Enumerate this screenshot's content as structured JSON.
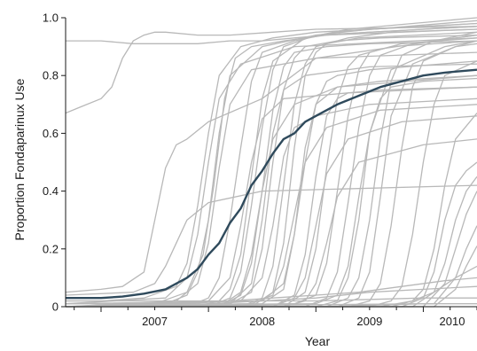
{
  "chart_data": {
    "type": "line",
    "title": "",
    "xlabel": "Year",
    "ylabel": "Proportion Fondaparinux Use",
    "xlim": [
      2006.67,
      2010.5
    ],
    "ylim": [
      0,
      1.0
    ],
    "x_ticks": [
      2007,
      2008,
      2009,
      2010
    ],
    "x_tick_labels": [
      "2007",
      "2008",
      "2009",
      "2010"
    ],
    "y_ticks": [
      0,
      0.2,
      0.4,
      0.6,
      0.8,
      1.0
    ],
    "y_tick_labels": [
      "0",
      "0.2",
      "0.4",
      "0.6",
      "0.8",
      "1.0"
    ],
    "grid": false,
    "colors": {
      "summary": "#2f4a5c",
      "hospitals": "#b8b8b8",
      "axis": "#1a1a1a"
    },
    "series": [
      {
        "role": "summary",
        "x": [
          2006.67,
          2007.0,
          2007.2,
          2007.4,
          2007.6,
          2007.8,
          2007.9,
          2008.0,
          2008.1,
          2008.2,
          2008.3,
          2008.4,
          2008.5,
          2008.6,
          2008.7,
          2008.8,
          2008.9,
          2009.0,
          2009.2,
          2009.4,
          2009.6,
          2009.8,
          2010.0,
          2010.2,
          2010.5
        ],
        "values": [
          0.03,
          0.03,
          0.035,
          0.045,
          0.06,
          0.1,
          0.13,
          0.18,
          0.22,
          0.29,
          0.34,
          0.42,
          0.47,
          0.53,
          0.58,
          0.6,
          0.64,
          0.66,
          0.7,
          0.73,
          0.76,
          0.78,
          0.8,
          0.81,
          0.82
        ]
      }
    ],
    "background_series": [
      {
        "x": [
          2006.67,
          2007.0,
          2007.3,
          2007.6,
          2007.9,
          2008.2,
          2008.5,
          2008.8,
          2009.1,
          2009.5,
          2010.0,
          2010.5
        ],
        "values": [
          0.92,
          0.92,
          0.91,
          0.91,
          0.91,
          0.92,
          0.92,
          0.93,
          0.94,
          0.95,
          0.96,
          0.97
        ]
      },
      {
        "x": [
          2006.67,
          2006.8,
          2007.0,
          2007.1,
          2007.2,
          2007.3,
          2007.4,
          2007.5,
          2007.6,
          2007.9,
          2008.2,
          2008.6,
          2009.0,
          2010.5
        ],
        "values": [
          0.67,
          0.69,
          0.72,
          0.76,
          0.86,
          0.92,
          0.94,
          0.95,
          0.95,
          0.94,
          0.94,
          0.95,
          0.96,
          0.97
        ]
      },
      {
        "x": [
          2006.67,
          2007.0,
          2007.2,
          2007.4,
          2007.5,
          2007.6,
          2007.7,
          2007.8,
          2008.0,
          2008.5,
          2009.0,
          2010.5
        ],
        "values": [
          0.05,
          0.06,
          0.07,
          0.12,
          0.3,
          0.48,
          0.56,
          0.58,
          0.64,
          0.72,
          0.86,
          0.94
        ]
      },
      {
        "x": [
          2006.67,
          2007.0,
          2007.4,
          2007.7,
          2007.8,
          2007.9,
          2008.0,
          2008.1,
          2008.3,
          2008.6,
          2009.0,
          2010.5
        ],
        "values": [
          0.02,
          0.02,
          0.03,
          0.07,
          0.15,
          0.35,
          0.6,
          0.8,
          0.9,
          0.93,
          0.95,
          0.98
        ]
      },
      {
        "x": [
          2006.67,
          2007.5,
          2007.8,
          2007.95,
          2008.05,
          2008.15,
          2008.25,
          2008.4,
          2008.7,
          2009.1,
          2010.5
        ],
        "values": [
          0.0,
          0.01,
          0.05,
          0.18,
          0.42,
          0.72,
          0.86,
          0.9,
          0.92,
          0.94,
          0.96
        ]
      },
      {
        "x": [
          2006.67,
          2007.8,
          2008.0,
          2008.1,
          2008.2,
          2008.3,
          2008.4,
          2008.5,
          2008.8,
          2009.2,
          2010.5
        ],
        "values": [
          0.0,
          0.0,
          0.03,
          0.1,
          0.3,
          0.55,
          0.78,
          0.88,
          0.92,
          0.95,
          0.99
        ]
      },
      {
        "x": [
          2006.67,
          2007.9,
          2008.1,
          2008.2,
          2008.3,
          2008.4,
          2008.5,
          2008.6,
          2008.9,
          2009.3,
          2010.5
        ],
        "values": [
          0.0,
          0.0,
          0.02,
          0.06,
          0.18,
          0.45,
          0.72,
          0.85,
          0.93,
          0.96,
          1.0
        ]
      },
      {
        "x": [
          2006.67,
          2008.0,
          2008.2,
          2008.3,
          2008.4,
          2008.5,
          2008.6,
          2008.7,
          2009.0,
          2009.5,
          2010.5
        ],
        "values": [
          0.0,
          0.0,
          0.03,
          0.12,
          0.35,
          0.62,
          0.82,
          0.9,
          0.94,
          0.96,
          0.98
        ]
      },
      {
        "x": [
          2006.67,
          2008.1,
          2008.3,
          2008.4,
          2008.5,
          2008.6,
          2008.7,
          2008.8,
          2009.1,
          2009.5,
          2010.5
        ],
        "values": [
          0.0,
          0.0,
          0.04,
          0.15,
          0.4,
          0.68,
          0.83,
          0.88,
          0.9,
          0.91,
          0.92
        ]
      },
      {
        "x": [
          2006.67,
          2008.2,
          2008.4,
          2008.5,
          2008.6,
          2008.7,
          2008.8,
          2008.9,
          2009.2,
          2009.6,
          2010.5
        ],
        "values": [
          0.0,
          0.01,
          0.05,
          0.2,
          0.5,
          0.75,
          0.86,
          0.9,
          0.92,
          0.93,
          0.94
        ]
      },
      {
        "x": [
          2006.67,
          2008.3,
          2008.5,
          2008.6,
          2008.7,
          2008.8,
          2008.9,
          2009.0,
          2009.3,
          2009.7,
          2010.5
        ],
        "values": [
          0.0,
          0.0,
          0.03,
          0.14,
          0.42,
          0.7,
          0.84,
          0.9,
          0.93,
          0.95,
          0.96
        ]
      },
      {
        "x": [
          2006.67,
          2008.4,
          2008.6,
          2008.7,
          2008.8,
          2008.9,
          2009.0,
          2009.1,
          2009.4,
          2010.5
        ],
        "values": [
          0.0,
          0.0,
          0.05,
          0.22,
          0.55,
          0.8,
          0.88,
          0.91,
          0.93,
          0.95
        ]
      },
      {
        "x": [
          2006.67,
          2008.5,
          2008.7,
          2008.8,
          2008.9,
          2009.0,
          2009.1,
          2009.2,
          2009.5,
          2010.5
        ],
        "values": [
          0.0,
          0.01,
          0.06,
          0.25,
          0.5,
          0.7,
          0.78,
          0.8,
          0.82,
          0.85
        ]
      },
      {
        "x": [
          2006.67,
          2008.6,
          2008.8,
          2008.9,
          2009.0,
          2009.1,
          2009.2,
          2009.3,
          2009.6,
          2010.5
        ],
        "values": [
          0.0,
          0.0,
          0.04,
          0.18,
          0.45,
          0.66,
          0.72,
          0.74,
          0.75,
          0.76
        ]
      },
      {
        "x": [
          2006.67,
          2008.7,
          2008.9,
          2009.0,
          2009.1,
          2009.2,
          2009.3,
          2009.4,
          2009.7,
          2010.5
        ],
        "values": [
          0.0,
          0.0,
          0.05,
          0.2,
          0.48,
          0.72,
          0.83,
          0.87,
          0.9,
          0.92
        ]
      },
      {
        "x": [
          2006.67,
          2008.8,
          2009.0,
          2009.1,
          2009.2,
          2009.3,
          2009.4,
          2009.5,
          2009.8,
          2010.5
        ],
        "values": [
          0.0,
          0.01,
          0.04,
          0.15,
          0.4,
          0.66,
          0.82,
          0.88,
          0.91,
          0.93
        ]
      },
      {
        "x": [
          2006.67,
          2008.9,
          2009.1,
          2009.2,
          2009.3,
          2009.4,
          2009.5,
          2009.6,
          2009.9,
          2010.5
        ],
        "values": [
          0.0,
          0.0,
          0.03,
          0.12,
          0.36,
          0.62,
          0.8,
          0.87,
          0.91,
          0.94
        ]
      },
      {
        "x": [
          2006.67,
          2009.0,
          2009.2,
          2009.3,
          2009.4,
          2009.5,
          2009.6,
          2009.7,
          2010.0,
          2010.5
        ],
        "values": [
          0.0,
          0.01,
          0.04,
          0.14,
          0.38,
          0.6,
          0.72,
          0.76,
          0.78,
          0.79
        ]
      },
      {
        "x": [
          2006.67,
          2009.1,
          2009.3,
          2009.4,
          2009.5,
          2009.6,
          2009.7,
          2009.8,
          2010.1,
          2010.5
        ],
        "values": [
          0.0,
          0.0,
          0.03,
          0.1,
          0.3,
          0.58,
          0.78,
          0.87,
          0.92,
          0.95
        ]
      },
      {
        "x": [
          2006.67,
          2009.3,
          2009.5,
          2009.6,
          2009.7,
          2009.8,
          2009.9,
          2010.0,
          2010.3,
          2010.5
        ],
        "values": [
          0.0,
          0.0,
          0.02,
          0.08,
          0.28,
          0.55,
          0.76,
          0.85,
          0.9,
          0.92
        ]
      },
      {
        "x": [
          2006.67,
          2009.5,
          2009.7,
          2009.8,
          2009.9,
          2010.0,
          2010.1,
          2010.2,
          2010.5
        ],
        "values": [
          0.0,
          0.0,
          0.02,
          0.07,
          0.25,
          0.5,
          0.7,
          0.8,
          0.85
        ]
      },
      {
        "x": [
          2006.67,
          2009.7,
          2009.9,
          2010.0,
          2010.1,
          2010.2,
          2010.3,
          2010.5
        ],
        "values": [
          0.0,
          0.0,
          0.02,
          0.06,
          0.2,
          0.42,
          0.58,
          0.67
        ]
      },
      {
        "x": [
          2006.67,
          2009.8,
          2010.0,
          2010.1,
          2010.2,
          2010.3,
          2010.4,
          2010.5
        ],
        "values": [
          0.0,
          0.0,
          0.03,
          0.12,
          0.3,
          0.42,
          0.47,
          0.5
        ]
      },
      {
        "x": [
          2006.67,
          2009.9,
          2010.1,
          2010.2,
          2010.3,
          2010.4,
          2010.5
        ],
        "values": [
          0.0,
          0.0,
          0.05,
          0.15,
          0.3,
          0.4,
          0.45
        ]
      },
      {
        "x": [
          2006.67,
          2010.0,
          2010.2,
          2010.3,
          2010.4,
          2010.5
        ],
        "values": [
          0.0,
          0.0,
          0.08,
          0.2,
          0.32,
          0.4
        ]
      },
      {
        "x": [
          2006.67,
          2010.1,
          2010.3,
          2010.4,
          2010.5
        ],
        "values": [
          0.0,
          0.01,
          0.1,
          0.2,
          0.28
        ]
      },
      {
        "x": [
          2006.67,
          2010.1,
          2010.3,
          2010.4,
          2010.5
        ],
        "values": [
          0.0,
          0.0,
          0.06,
          0.14,
          0.21
        ]
      },
      {
        "x": [
          2006.67,
          2009.6,
          2009.9,
          2010.1,
          2010.3,
          2010.5
        ],
        "values": [
          0.0,
          0.0,
          0.02,
          0.05,
          0.1,
          0.14
        ]
      },
      {
        "x": [
          2006.67,
          2007.5,
          2008.0,
          2008.5,
          2009.0,
          2009.5,
          2010.0,
          2010.5
        ],
        "values": [
          0.0,
          0.0,
          0.01,
          0.02,
          0.03,
          0.05,
          0.06,
          0.07
        ]
      },
      {
        "x": [
          2006.67,
          2007.8,
          2008.2,
          2008.6,
          2009.0,
          2009.4,
          2009.8,
          2010.2,
          2010.5
        ],
        "values": [
          0.01,
          0.01,
          0.02,
          0.03,
          0.04,
          0.05,
          0.07,
          0.09,
          0.1
        ]
      },
      {
        "x": [
          2006.67,
          2008.0,
          2009.0,
          2010.0,
          2010.5
        ],
        "values": [
          0.02,
          0.02,
          0.02,
          0.03,
          0.03
        ]
      },
      {
        "x": [
          2006.67,
          2008.0,
          2009.0,
          2010.0,
          2010.5
        ],
        "values": [
          0.0,
          0.0,
          0.0,
          0.01,
          0.01
        ]
      },
      {
        "x": [
          2006.67,
          2008.5,
          2008.7,
          2008.8,
          2008.9,
          2009.0,
          2009.2,
          2009.6,
          2010.5
        ],
        "values": [
          0.01,
          0.02,
          0.08,
          0.25,
          0.55,
          0.7,
          0.76,
          0.78,
          0.8
        ]
      },
      {
        "x": [
          2006.67,
          2008.3,
          2008.5,
          2008.6,
          2008.7,
          2008.8,
          2009.0,
          2009.5,
          2010.5
        ],
        "values": [
          0.0,
          0.02,
          0.1,
          0.28,
          0.52,
          0.62,
          0.66,
          0.7,
          0.72
        ]
      },
      {
        "x": [
          2006.67,
          2008.2,
          2008.4,
          2008.5,
          2008.6,
          2008.7,
          2008.9,
          2009.5,
          2010.5
        ],
        "values": [
          0.0,
          0.01,
          0.08,
          0.3,
          0.6,
          0.75,
          0.8,
          0.83,
          0.84
        ]
      },
      {
        "x": [
          2006.67,
          2008.0,
          2008.2,
          2008.3,
          2008.4,
          2008.5,
          2008.7,
          2009.3,
          2010.5
        ],
        "values": [
          0.0,
          0.02,
          0.1,
          0.28,
          0.5,
          0.65,
          0.72,
          0.74,
          0.76
        ]
      },
      {
        "x": [
          2006.67,
          2007.7,
          2007.9,
          2008.0,
          2008.1,
          2008.2,
          2008.4,
          2009.0,
          2010.5
        ],
        "values": [
          0.0,
          0.02,
          0.08,
          0.22,
          0.48,
          0.7,
          0.82,
          0.86,
          0.88
        ]
      },
      {
        "x": [
          2006.67,
          2007.6,
          2007.8,
          2007.9,
          2008.0,
          2008.1,
          2008.3,
          2008.8,
          2010.5
        ],
        "values": [
          0.01,
          0.03,
          0.1,
          0.25,
          0.5,
          0.72,
          0.84,
          0.9,
          0.93
        ]
      },
      {
        "x": [
          2006.67,
          2008.1,
          2008.3,
          2008.4,
          2008.5,
          2008.6,
          2008.8,
          2009.2,
          2010.5
        ],
        "values": [
          0.0,
          0.0,
          0.05,
          0.18,
          0.4,
          0.58,
          0.7,
          0.76,
          0.8
        ]
      },
      {
        "x": [
          2006.67,
          2008.4,
          2008.6,
          2008.7,
          2008.8,
          2008.9,
          2009.1,
          2009.6,
          2010.5
        ],
        "values": [
          0.0,
          0.01,
          0.04,
          0.14,
          0.32,
          0.5,
          0.62,
          0.68,
          0.7
        ]
      },
      {
        "x": [
          2006.67,
          2008.6,
          2008.8,
          2008.9,
          2009.0,
          2009.1,
          2009.3,
          2009.8,
          2010.5
        ],
        "values": [
          0.0,
          0.0,
          0.03,
          0.1,
          0.28,
          0.46,
          0.58,
          0.64,
          0.66
        ]
      },
      {
        "x": [
          2006.67,
          2008.7,
          2008.9,
          2009.0,
          2009.1,
          2009.2,
          2009.4,
          2010.0,
          2010.5
        ],
        "values": [
          0.0,
          0.0,
          0.02,
          0.08,
          0.22,
          0.38,
          0.5,
          0.56,
          0.58
        ]
      },
      {
        "x": [
          2006.67,
          2009.0,
          2009.2,
          2009.3,
          2009.4,
          2009.5,
          2009.7,
          2010.2,
          2010.5
        ],
        "values": [
          0.0,
          0.0,
          0.02,
          0.1,
          0.3,
          0.6,
          0.82,
          0.9,
          0.92
        ]
      },
      {
        "x": [
          2006.67,
          2009.2,
          2009.4,
          2009.5,
          2009.6,
          2009.7,
          2009.9,
          2010.3,
          2010.5
        ],
        "values": [
          0.0,
          0.0,
          0.03,
          0.12,
          0.38,
          0.66,
          0.84,
          0.9,
          0.91
        ]
      },
      {
        "x": [
          2006.67,
          2007.6,
          2007.8,
          2007.9,
          2008.0,
          2008.1,
          2008.2,
          2008.5,
          2009.0,
          2010.5
        ],
        "values": [
          0.0,
          0.01,
          0.04,
          0.12,
          0.3,
          0.6,
          0.8,
          0.9,
          0.94,
          0.97
        ]
      },
      {
        "x": [
          2006.67,
          2007.3,
          2007.5,
          2007.6,
          2007.7,
          2007.8,
          2008.0,
          2008.5,
          2010.5
        ],
        "values": [
          0.04,
          0.05,
          0.08,
          0.14,
          0.22,
          0.3,
          0.36,
          0.4,
          0.42
        ]
      }
    ]
  }
}
